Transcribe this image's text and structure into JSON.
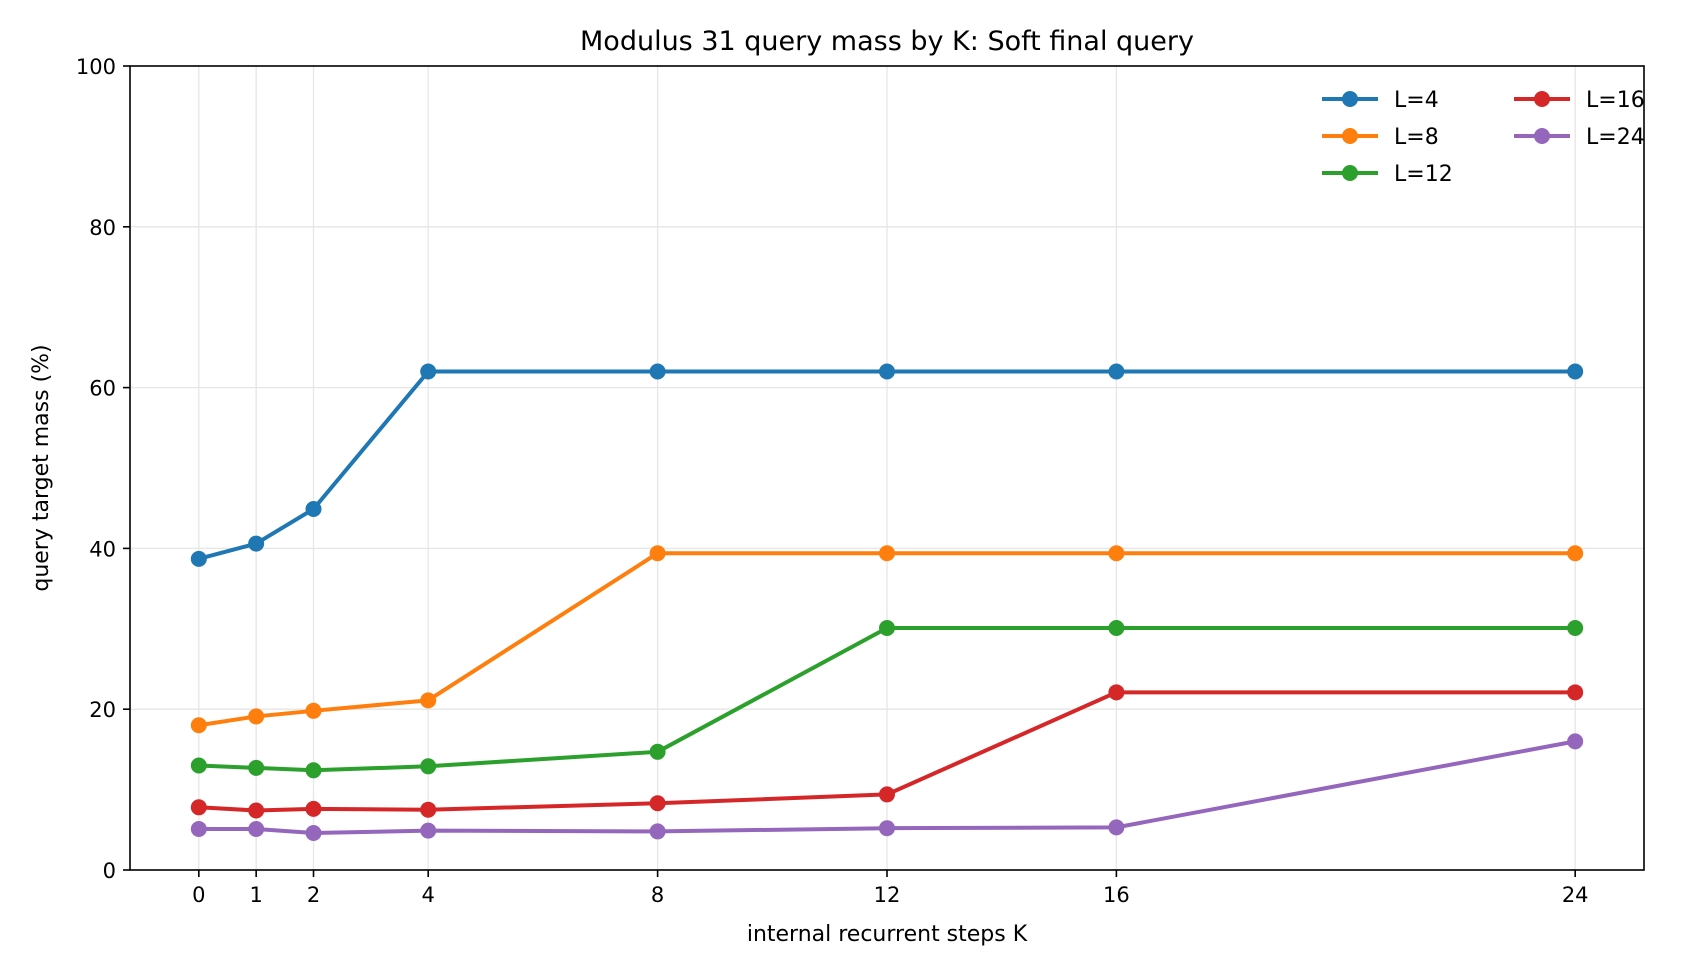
{
  "chart_data": {
    "type": "line",
    "title": "Modulus 31 query mass by K: Soft final query",
    "xlabel": "internal recurrent steps K",
    "ylabel": "query target mass (%)",
    "x": [
      0,
      1,
      2,
      4,
      8,
      12,
      16,
      24
    ],
    "xticks": [
      0,
      1,
      2,
      4,
      8,
      12,
      16,
      24
    ],
    "xlim": [
      -1.2,
      25.2
    ],
    "ylim": [
      0,
      100
    ],
    "yticks": [
      0,
      20,
      40,
      60,
      80,
      100
    ],
    "grid": true,
    "legend": {
      "placement": "top-right",
      "columns": 2
    },
    "series": [
      {
        "name": "L=4",
        "color": "#1f77b4",
        "values": [
          38.7,
          40.6,
          44.9,
          62.0,
          62.0,
          62.0,
          62.0,
          62.0
        ]
      },
      {
        "name": "L=8",
        "color": "#ff7f0e",
        "values": [
          18.0,
          19.1,
          19.8,
          21.1,
          39.4,
          39.4,
          39.4,
          39.4
        ]
      },
      {
        "name": "L=12",
        "color": "#2ca02c",
        "values": [
          13.0,
          12.7,
          12.4,
          12.9,
          14.7,
          30.1,
          30.1,
          30.1
        ]
      },
      {
        "name": "L=16",
        "color": "#d62728",
        "values": [
          7.8,
          7.4,
          7.6,
          7.5,
          8.3,
          9.4,
          22.1,
          22.1
        ]
      },
      {
        "name": "L=24",
        "color": "#9467bd",
        "values": [
          5.1,
          5.1,
          4.6,
          4.9,
          4.8,
          5.2,
          5.3,
          16.0
        ]
      }
    ]
  }
}
